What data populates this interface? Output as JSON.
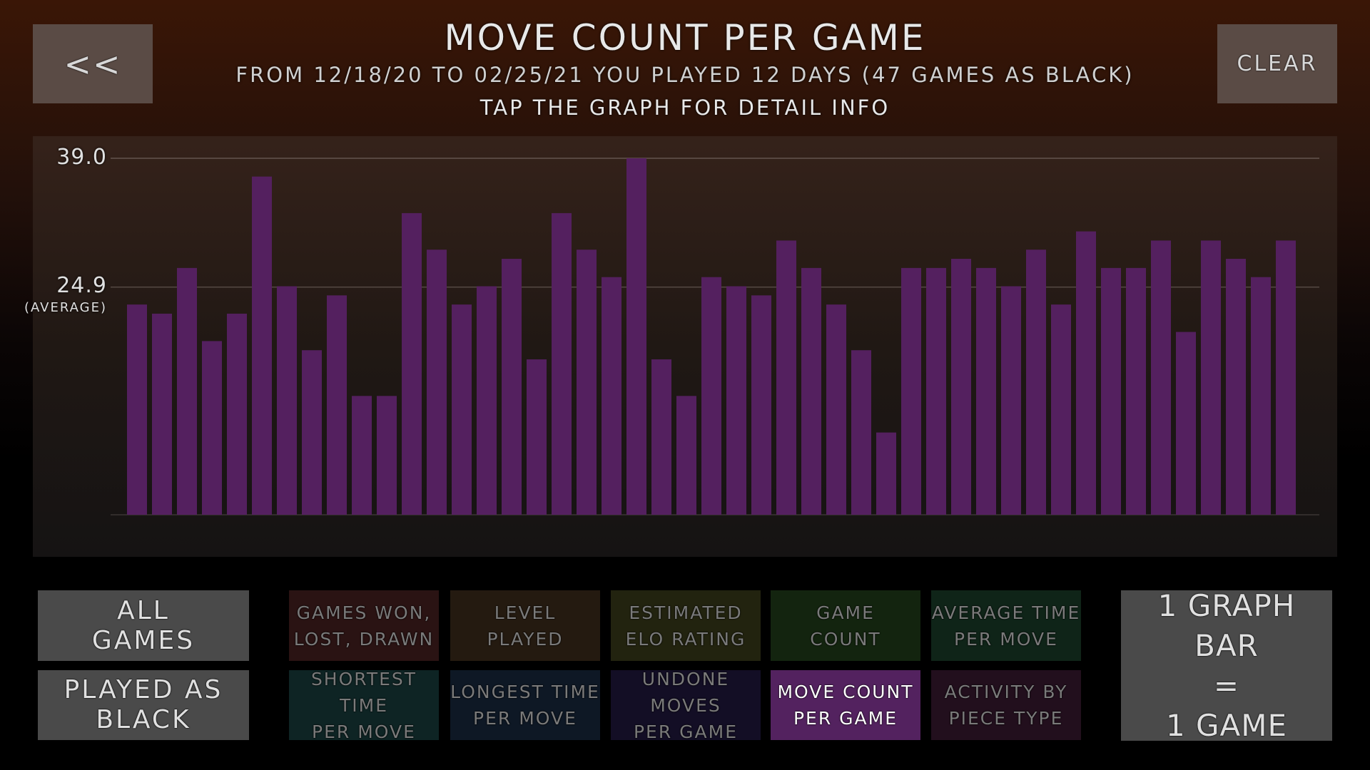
{
  "header": {
    "back_label": "<<",
    "clear_label": "CLEAR",
    "title": "MOVE COUNT PER GAME",
    "subtitle": "FROM 12/18/20 TO 02/25/21 YOU PLAYED 12 DAYS (47 GAMES AS BLACK)",
    "hint": "TAP THE GRAPH FOR DETAIL INFO"
  },
  "chart_data": {
    "type": "bar",
    "title": "MOVE COUNT PER GAME",
    "xlabel": "",
    "ylabel": "",
    "ylim": [
      0,
      39.0
    ],
    "grid": true,
    "ticks": [
      {
        "value": 39.0,
        "label": "39.0"
      },
      {
        "value": 24.9,
        "label": "24.9",
        "sublabel": "(AVERAGE)"
      }
    ],
    "bar_color": "#54205f",
    "values": [
      23,
      22,
      27,
      19,
      22,
      37,
      25,
      18,
      24,
      13,
      13,
      33,
      29,
      23,
      25,
      28,
      17,
      33,
      29,
      26,
      39,
      17,
      13,
      26,
      25,
      24,
      30,
      27,
      23,
      18,
      9,
      27,
      27,
      28,
      27,
      25,
      29,
      23,
      31,
      27,
      27,
      30,
      20,
      30,
      28,
      26,
      30
    ]
  },
  "filters": {
    "all_games": "ALL\nGAMES",
    "played_as": "PLAYED AS\nBLACK"
  },
  "graph_types": [
    {
      "label": "GAMES WON,\nLOST, DRAWN",
      "color": "#2a1313"
    },
    {
      "label": "LEVEL\nPLAYED",
      "color": "#241a10"
    },
    {
      "label": "ESTIMATED\nELO RATING",
      "color": "#22230f"
    },
    {
      "label": "GAME\nCOUNT",
      "color": "#13240f"
    },
    {
      "label": "AVERAGE TIME\nPER MOVE",
      "color": "#0f2418"
    },
    {
      "label": "SHORTEST TIME\nPER MOVE",
      "color": "#0e2424"
    },
    {
      "label": "LONGEST TIME\nPER MOVE",
      "color": "#0e1825"
    },
    {
      "label": "UNDONE MOVES\nPER GAME",
      "color": "#130e25"
    },
    {
      "label": "MOVE COUNT\nPER GAME",
      "color": "#53225f",
      "active": true
    },
    {
      "label": "ACTIVITY BY\nPIECE TYPE",
      "color": "#220f1d"
    }
  ],
  "bar_unit": "1 GRAPH BAR\n=\n1 GAME"
}
